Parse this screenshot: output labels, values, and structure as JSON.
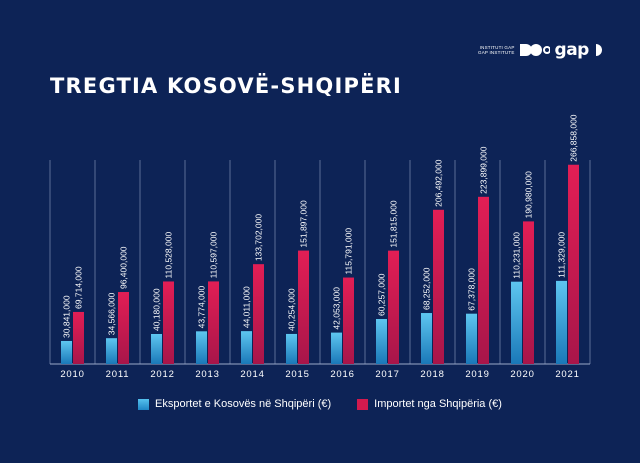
{
  "brand": {
    "small_line1": "INSTITUTI GAP",
    "small_line2": "GAP INSTITUTE",
    "logo_text": "gap"
  },
  "colors": {
    "background": "#0d2356",
    "exports": "#2a9ad6",
    "imports": "#d21a4e",
    "grid": "#6f80a6"
  },
  "chart_data": {
    "type": "bar",
    "title": "TREGTIA KOSOVË-SHQIPËRI",
    "categories": [
      "2010",
      "2011",
      "2012",
      "2013",
      "2014",
      "2015",
      "2016",
      "2017",
      "2018",
      "2019",
      "2020",
      "2021"
    ],
    "series": [
      {
        "name": "Eksportet e Kosovës në Shqipëri (€)",
        "values": [
          30841000,
          34566000,
          40180000,
          43774000,
          44011000,
          40254000,
          42053000,
          60257000,
          68252000,
          67378000,
          110231000,
          111329000
        ],
        "labels": [
          "30,841,000",
          "34,566,000",
          "40,180,000",
          "43,774,000",
          "44,011,000",
          "40,254,000",
          "42,053,000",
          "60,257,000",
          "68,252,000",
          "67,378,000",
          "110,231,000",
          "111,329,000"
        ]
      },
      {
        "name": "Importet nga Shqipëria (€)",
        "values": [
          69714000,
          96400000,
          110528000,
          110597000,
          133702000,
          151897000,
          115791000,
          151815000,
          206492000,
          223899000,
          190980000,
          266858000
        ],
        "labels": [
          "69,714,000",
          "96,400,000",
          "110,528,000",
          "110,597,000",
          "133,702,000",
          "151,897,000",
          "115,791,000",
          "151,815,000",
          "206,492,000",
          "223,899,000",
          "190,980,000",
          "266,858,000"
        ]
      }
    ],
    "ylim": [
      0,
      300000000
    ],
    "grid": "vertical",
    "legend": "bottom-center"
  }
}
